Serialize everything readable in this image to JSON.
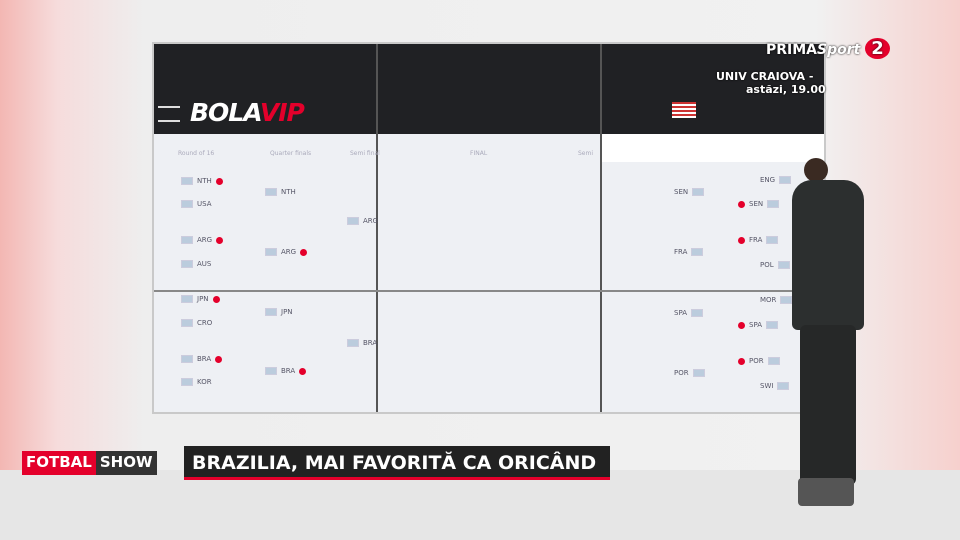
{
  "channel": {
    "name": "PRIMA",
    "brand": "Sport",
    "number": "2"
  },
  "ticker": {
    "match": "UNIV CRAIOVA -",
    "time": "astăzi, 19.00"
  },
  "screen": {
    "logo": {
      "part1": "BOLA",
      "part2": "VIP"
    },
    "headers": [
      "Round of 16",
      "Quarter finals",
      "Semi final",
      "FINAL",
      "Semi"
    ],
    "left": {
      "round_of_16": [
        "NTH",
        "USA",
        "ARG",
        "AUS",
        "JPN",
        "CRO",
        "BRA",
        "KOR"
      ],
      "quarter_finals": [
        "NTH",
        "ARG",
        "JPN",
        "BRA"
      ],
      "semi_finals": [
        "ARG",
        "BRA"
      ]
    },
    "right": {
      "round_of_16": [
        "ENG",
        "SEN",
        "FRA",
        "POL",
        "MOR",
        "SPA",
        "POR",
        "SWI"
      ],
      "quarter_finals": [
        "SEN",
        "FRA",
        "SPA",
        "POR"
      ]
    }
  },
  "lower_third": {
    "show_part1": "FOTBAL",
    "show_part2": "SHOW",
    "headline": "BRAZILIA, MAI FAVORITĂ CA ORICÂND"
  }
}
